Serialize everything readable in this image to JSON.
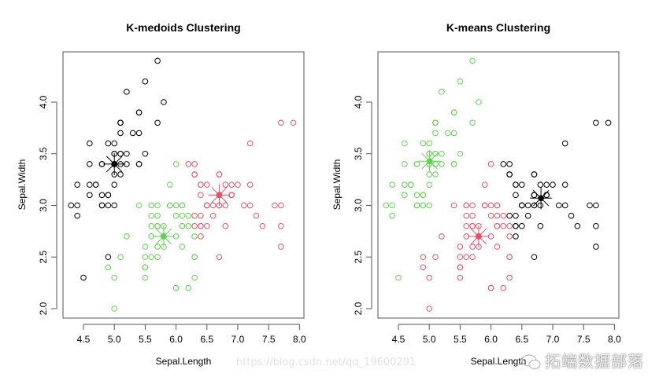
{
  "chart_data": [
    {
      "type": "scatter",
      "title": "K-medoids Clustering",
      "xlabel": "Sepal.Length",
      "ylabel": "Sepal.Width",
      "xlim": [
        4.2,
        8.0
      ],
      "ylim": [
        2.0,
        4.4
      ],
      "xticks": [
        "4.5",
        "5.0",
        "5.5",
        "6.0",
        "6.5",
        "7.0",
        "7.5",
        "8.0"
      ],
      "yticks": [
        "2.0",
        "2.5",
        "3.0",
        "3.5",
        "4.0"
      ],
      "grid": false,
      "marker": "open-circle",
      "cluster_colors": {
        "k": "#000000",
        "g": "#61D04F",
        "r": "#DF536B"
      },
      "x": [
        5.1,
        4.9,
        4.7,
        4.6,
        5.0,
        5.4,
        4.6,
        5.0,
        4.4,
        4.9,
        5.4,
        4.8,
        4.8,
        4.3,
        5.8,
        5.7,
        5.4,
        5.1,
        5.7,
        5.1,
        5.4,
        5.1,
        4.6,
        5.1,
        4.8,
        5.0,
        5.0,
        5.2,
        5.2,
        4.7,
        4.8,
        5.4,
        5.2,
        5.5,
        4.9,
        5.0,
        5.5,
        4.9,
        4.4,
        5.1,
        5.0,
        4.5,
        4.4,
        5.0,
        5.1,
        4.8,
        5.1,
        4.6,
        5.3,
        5.0,
        7.0,
        6.4,
        6.9,
        5.5,
        6.5,
        5.7,
        6.3,
        4.9,
        6.6,
        5.2,
        5.0,
        5.9,
        6.0,
        6.1,
        5.6,
        6.7,
        5.6,
        5.8,
        6.2,
        5.6,
        5.9,
        6.1,
        6.3,
        6.1,
        6.4,
        6.6,
        6.8,
        6.7,
        6.0,
        5.7,
        5.5,
        5.5,
        5.8,
        6.0,
        5.4,
        6.0,
        6.7,
        6.3,
        5.6,
        5.5,
        5.5,
        6.1,
        5.8,
        5.0,
        5.6,
        5.7,
        5.7,
        6.2,
        5.1,
        5.7,
        6.3,
        5.8,
        7.1,
        6.3,
        6.5,
        7.6,
        4.9,
        7.3,
        6.7,
        7.2,
        6.5,
        6.4,
        6.8,
        5.7,
        5.8,
        6.4,
        6.5,
        7.7,
        7.7,
        6.0,
        6.9,
        5.6,
        7.7,
        6.3,
        6.7,
        7.2,
        6.2,
        6.1,
        6.4,
        7.2,
        7.4,
        7.9,
        6.4,
        6.3,
        6.1,
        7.7,
        6.3,
        6.4,
        6.0,
        6.9,
        6.7,
        6.9,
        5.8,
        6.8,
        6.7,
        6.7,
        6.3,
        6.5,
        6.2,
        5.9
      ],
      "y": [
        3.5,
        3.0,
        3.2,
        3.1,
        3.6,
        3.9,
        3.4,
        3.4,
        2.9,
        3.1,
        3.7,
        3.4,
        3.0,
        3.0,
        4.0,
        4.4,
        3.9,
        3.5,
        3.8,
        3.8,
        3.4,
        3.7,
        3.6,
        3.3,
        3.4,
        3.0,
        3.4,
        3.5,
        3.4,
        3.2,
        3.1,
        3.4,
        4.1,
        4.2,
        3.1,
        3.2,
        3.5,
        3.6,
        3.0,
        3.4,
        3.5,
        2.3,
        3.2,
        3.5,
        3.8,
        3.0,
        3.8,
        3.2,
        3.7,
        3.3,
        3.2,
        3.2,
        3.1,
        2.3,
        2.8,
        2.8,
        3.3,
        2.4,
        2.9,
        2.7,
        2.0,
        3.0,
        2.2,
        2.9,
        2.9,
        3.1,
        3.0,
        2.7,
        2.2,
        2.5,
        3.2,
        2.8,
        2.5,
        2.8,
        2.9,
        3.0,
        2.8,
        3.0,
        2.9,
        2.6,
        2.4,
        2.4,
        2.7,
        2.7,
        3.0,
        3.4,
        3.1,
        2.3,
        3.0,
        2.5,
        2.6,
        3.0,
        2.6,
        2.3,
        2.7,
        3.0,
        2.9,
        2.9,
        2.5,
        2.8,
        3.3,
        2.7,
        3.0,
        2.9,
        3.0,
        3.0,
        2.5,
        2.9,
        2.5,
        3.6,
        3.2,
        2.7,
        3.0,
        2.5,
        2.8,
        3.2,
        3.0,
        3.8,
        2.6,
        2.2,
        3.2,
        2.8,
        2.8,
        2.7,
        3.3,
        3.2,
        2.8,
        3.0,
        2.8,
        3.0,
        2.8,
        3.8,
        2.8,
        2.8,
        2.6,
        3.0,
        3.4,
        3.1,
        3.0,
        3.1,
        3.1,
        3.1,
        2.7,
        3.2,
        3.3,
        3.0,
        2.5,
        3.0,
        3.4,
        3.0
      ],
      "cluster": [
        "k",
        "k",
        "k",
        "k",
        "k",
        "k",
        "k",
        "k",
        "k",
        "k",
        "k",
        "k",
        "k",
        "k",
        "k",
        "k",
        "k",
        "k",
        "k",
        "k",
        "k",
        "k",
        "k",
        "k",
        "k",
        "k",
        "k",
        "k",
        "k",
        "k",
        "k",
        "k",
        "k",
        "k",
        "k",
        "k",
        "k",
        "k",
        "k",
        "k",
        "k",
        "k",
        "k",
        "k",
        "k",
        "k",
        "k",
        "k",
        "k",
        "k",
        "r",
        "r",
        "r",
        "g",
        "r",
        "g",
        "r",
        "g",
        "r",
        "g",
        "g",
        "g",
        "g",
        "g",
        "g",
        "r",
        "g",
        "g",
        "g",
        "g",
        "g",
        "g",
        "g",
        "g",
        "r",
        "r",
        "r",
        "r",
        "g",
        "g",
        "g",
        "g",
        "g",
        "g",
        "g",
        "g",
        "r",
        "g",
        "g",
        "g",
        "g",
        "g",
        "g",
        "g",
        "g",
        "g",
        "g",
        "g",
        "g",
        "g",
        "r",
        "g",
        "r",
        "r",
        "r",
        "r",
        "k",
        "r",
        "r",
        "r",
        "r",
        "r",
        "r",
        "g",
        "g",
        "r",
        "r",
        "r",
        "r",
        "g",
        "r",
        "g",
        "r",
        "g",
        "r",
        "r",
        "g",
        "g",
        "r",
        "r",
        "r",
        "r",
        "r",
        "r",
        "g",
        "r",
        "r",
        "r",
        "g",
        "r",
        "r",
        "r",
        "g",
        "r",
        "r",
        "r",
        "g",
        "r",
        "r",
        "g"
      ],
      "centers": [
        {
          "cluster": "k",
          "x": 5.0,
          "y": 3.4
        },
        {
          "cluster": "g",
          "x": 5.8,
          "y": 2.7
        },
        {
          "cluster": "r",
          "x": 6.7,
          "y": 3.1
        }
      ]
    },
    {
      "type": "scatter",
      "title": "K-means Clustering",
      "xlabel": "Sepal.Length",
      "ylabel": "Sepal.Width",
      "xlim": [
        4.2,
        8.0
      ],
      "ylim": [
        2.0,
        4.4
      ],
      "xticks": [
        "4.5",
        "5.0",
        "5.5",
        "6.0",
        "6.5",
        "7.0",
        "7.5",
        "8.0"
      ],
      "yticks": [
        "2.0",
        "2.5",
        "3.0",
        "3.5",
        "4.0"
      ],
      "grid": false,
      "marker": "open-circle",
      "cluster_colors": {
        "k": "#000000",
        "g": "#61D04F",
        "r": "#DF536B"
      },
      "x": [
        5.1,
        4.9,
        4.7,
        4.6,
        5.0,
        5.4,
        4.6,
        5.0,
        4.4,
        4.9,
        5.4,
        4.8,
        4.8,
        4.3,
        5.8,
        5.7,
        5.4,
        5.1,
        5.7,
        5.1,
        5.4,
        5.1,
        4.6,
        5.1,
        4.8,
        5.0,
        5.0,
        5.2,
        5.2,
        4.7,
        4.8,
        5.4,
        5.2,
        5.5,
        4.9,
        5.0,
        5.5,
        4.9,
        4.4,
        5.1,
        5.0,
        4.5,
        4.4,
        5.0,
        5.1,
        4.8,
        5.1,
        4.6,
        5.3,
        5.0,
        7.0,
        6.4,
        6.9,
        5.5,
        6.5,
        5.7,
        6.3,
        4.9,
        6.6,
        5.2,
        5.0,
        5.9,
        6.0,
        6.1,
        5.6,
        6.7,
        5.6,
        5.8,
        6.2,
        5.6,
        5.9,
        6.1,
        6.3,
        6.1,
        6.4,
        6.6,
        6.8,
        6.7,
        6.0,
        5.7,
        5.5,
        5.5,
        5.8,
        6.0,
        5.4,
        6.0,
        6.7,
        6.3,
        5.6,
        5.5,
        5.5,
        6.1,
        5.8,
        5.0,
        5.6,
        5.7,
        5.7,
        6.2,
        5.1,
        5.7,
        6.3,
        5.8,
        7.1,
        6.3,
        6.5,
        7.6,
        4.9,
        7.3,
        6.7,
        7.2,
        6.5,
        6.4,
        6.8,
        5.7,
        5.8,
        6.4,
        6.5,
        7.7,
        7.7,
        6.0,
        6.9,
        5.6,
        7.7,
        6.3,
        6.7,
        7.2,
        6.2,
        6.1,
        6.4,
        7.2,
        7.4,
        7.9,
        6.4,
        6.3,
        6.1,
        7.7,
        6.3,
        6.4,
        6.0,
        6.9,
        6.7,
        6.9,
        5.8,
        6.8,
        6.7,
        6.7,
        6.3,
        6.5,
        6.2,
        5.9
      ],
      "y": [
        3.5,
        3.0,
        3.2,
        3.1,
        3.6,
        3.9,
        3.4,
        3.4,
        2.9,
        3.1,
        3.7,
        3.4,
        3.0,
        3.0,
        4.0,
        4.4,
        3.9,
        3.5,
        3.8,
        3.8,
        3.4,
        3.7,
        3.6,
        3.3,
        3.4,
        3.0,
        3.4,
        3.5,
        3.4,
        3.2,
        3.1,
        3.4,
        4.1,
        4.2,
        3.1,
        3.2,
        3.5,
        3.6,
        3.0,
        3.4,
        3.5,
        2.3,
        3.2,
        3.5,
        3.8,
        3.0,
        3.8,
        3.2,
        3.7,
        3.3,
        3.2,
        3.2,
        3.1,
        2.3,
        2.8,
        2.8,
        3.3,
        2.4,
        2.9,
        2.7,
        2.0,
        3.0,
        2.2,
        2.9,
        2.9,
        3.1,
        3.0,
        2.7,
        2.2,
        2.5,
        3.2,
        2.8,
        2.5,
        2.8,
        2.9,
        3.0,
        2.8,
        3.0,
        2.9,
        2.6,
        2.4,
        2.4,
        2.7,
        2.7,
        3.0,
        3.4,
        3.1,
        2.3,
        3.0,
        2.5,
        2.6,
        3.0,
        2.6,
        2.3,
        2.7,
        3.0,
        2.9,
        2.9,
        2.5,
        2.8,
        3.3,
        2.7,
        3.0,
        2.9,
        3.0,
        3.0,
        2.5,
        2.9,
        2.5,
        3.6,
        3.2,
        2.7,
        3.0,
        2.5,
        2.8,
        3.2,
        3.0,
        3.8,
        2.6,
        2.2,
        3.2,
        2.8,
        2.8,
        2.7,
        3.3,
        3.2,
        2.8,
        3.0,
        2.8,
        3.0,
        2.8,
        3.8,
        2.8,
        2.8,
        2.6,
        3.0,
        3.4,
        3.1,
        3.0,
        3.1,
        3.1,
        3.1,
        2.7,
        3.2,
        3.3,
        3.0,
        2.5,
        3.0,
        3.4,
        3.0
      ],
      "cluster": [
        "g",
        "g",
        "g",
        "g",
        "g",
        "g",
        "g",
        "g",
        "g",
        "g",
        "g",
        "g",
        "g",
        "g",
        "g",
        "g",
        "g",
        "g",
        "g",
        "g",
        "g",
        "g",
        "g",
        "g",
        "g",
        "g",
        "g",
        "g",
        "g",
        "g",
        "g",
        "g",
        "g",
        "g",
        "g",
        "g",
        "g",
        "g",
        "g",
        "g",
        "g",
        "g",
        "g",
        "g",
        "g",
        "g",
        "g",
        "g",
        "g",
        "g",
        "k",
        "k",
        "k",
        "r",
        "k",
        "r",
        "k",
        "r",
        "k",
        "r",
        "r",
        "r",
        "r",
        "r",
        "r",
        "k",
        "r",
        "r",
        "r",
        "r",
        "r",
        "r",
        "r",
        "r",
        "k",
        "k",
        "k",
        "k",
        "r",
        "r",
        "r",
        "r",
        "r",
        "r",
        "r",
        "r",
        "k",
        "r",
        "r",
        "r",
        "r",
        "r",
        "r",
        "r",
        "r",
        "r",
        "r",
        "r",
        "r",
        "r",
        "k",
        "r",
        "k",
        "k",
        "k",
        "k",
        "r",
        "k",
        "k",
        "k",
        "k",
        "k",
        "k",
        "r",
        "r",
        "k",
        "k",
        "k",
        "k",
        "r",
        "k",
        "r",
        "k",
        "r",
        "k",
        "k",
        "r",
        "r",
        "k",
        "k",
        "k",
        "k",
        "k",
        "r",
        "r",
        "k",
        "k",
        "k",
        "r",
        "k",
        "k",
        "k",
        "r",
        "k",
        "k",
        "k",
        "r",
        "k",
        "k",
        "r"
      ],
      "centers": [
        {
          "cluster": "g",
          "x": 5.006,
          "y": 3.428
        },
        {
          "cluster": "r",
          "x": 5.8,
          "y": 2.7
        },
        {
          "cluster": "k",
          "x": 6.81,
          "y": 3.07
        }
      ]
    }
  ],
  "watermark": {
    "brand": "拓端数据部落",
    "url": "https://blog.csdn.net/qq_19600291"
  }
}
